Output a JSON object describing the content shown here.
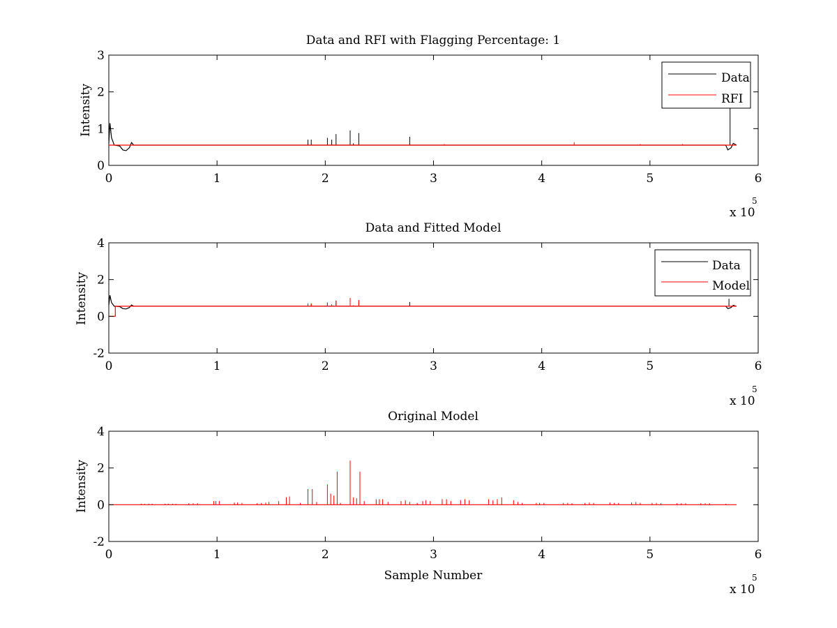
{
  "chart_data": [
    {
      "type": "line",
      "title": "Data and RFI with Flagging Percentage: 1",
      "xlabel": "",
      "ylabel": "Intensity",
      "xlim": [
        0,
        600000
      ],
      "ylim": [
        0,
        3
      ],
      "xticks": [
        "0",
        "1",
        "2",
        "3",
        "4",
        "5",
        "6"
      ],
      "yticks": [
        "0",
        "1",
        "2",
        "3"
      ],
      "x_exponent": {
        "base": "x 10",
        "power": "5"
      },
      "legend": {
        "placement": "top-right",
        "entries": [
          "Data",
          "RFI"
        ]
      },
      "series": [
        {
          "name": "Data",
          "color": "#000000",
          "baseline": 0.55,
          "points": [
            [
              0,
              0.6
            ],
            [
              1000,
              1.15
            ],
            [
              2500,
              0.75
            ],
            [
              5000,
              0.55
            ],
            [
              10000,
              0.53
            ],
            [
              13000,
              0.42
            ],
            [
              16000,
              0.4
            ],
            [
              19000,
              0.48
            ],
            [
              21000,
              0.62
            ],
            [
              23000,
              0.55
            ],
            [
              570000,
              0.55
            ],
            [
              572000,
              0.42
            ],
            [
              575000,
              0.48
            ],
            [
              577000,
              0.6
            ],
            [
              580000,
              0.55
            ]
          ],
          "spikes": [
            [
              184000,
              0.7
            ],
            [
              187000,
              0.7
            ],
            [
              202000,
              0.75
            ],
            [
              206000,
              0.7
            ],
            [
              210000,
              0.85
            ],
            [
              223000,
              0.95
            ],
            [
              226000,
              0.6
            ],
            [
              231000,
              0.88
            ],
            [
              278000,
              0.78
            ],
            [
              574000,
              1.55
            ]
          ]
        },
        {
          "name": "RFI",
          "color": "#ff0000",
          "baseline": 0.55,
          "points": [
            [
              0,
              0.55
            ],
            [
              580000,
              0.55
            ]
          ],
          "spikes": [
            [
              310000,
              0.58
            ],
            [
              430000,
              0.63
            ],
            [
              491000,
              0.58
            ],
            [
              530000,
              0.58
            ]
          ]
        }
      ]
    },
    {
      "type": "line",
      "title": "Data and Fitted Model",
      "xlabel": "",
      "ylabel": "Intensity",
      "xlim": [
        0,
        600000
      ],
      "ylim": [
        -2,
        4
      ],
      "xticks": [
        "0",
        "1",
        "2",
        "3",
        "4",
        "5",
        "6"
      ],
      "yticks": [
        "-2",
        "0",
        "2",
        "4"
      ],
      "x_exponent": {
        "base": "x 10",
        "power": "5"
      },
      "legend": {
        "placement": "top-right",
        "entries": [
          "Data",
          "Model"
        ]
      },
      "series": [
        {
          "name": "Data",
          "color": "#000000",
          "baseline": 0.55,
          "points": [
            [
              0,
              0.6
            ],
            [
              1000,
              1.15
            ],
            [
              2500,
              0.75
            ],
            [
              5000,
              0.55
            ],
            [
              10000,
              0.53
            ],
            [
              13000,
              0.42
            ],
            [
              16000,
              0.4
            ],
            [
              19000,
              0.48
            ],
            [
              21000,
              0.62
            ],
            [
              23000,
              0.55
            ],
            [
              570000,
              0.55
            ],
            [
              572000,
              0.42
            ],
            [
              575000,
              0.48
            ],
            [
              577000,
              0.6
            ],
            [
              580000,
              0.55
            ]
          ],
          "spikes": [
            [
              184000,
              0.7
            ],
            [
              187000,
              0.7
            ],
            [
              202000,
              0.75
            ],
            [
              210000,
              0.85
            ],
            [
              223000,
              0.95
            ],
            [
              231000,
              0.88
            ],
            [
              278000,
              0.78
            ],
            [
              573000,
              0.95
            ]
          ]
        },
        {
          "name": "Model",
          "color": "#ff0000",
          "baseline": 0.55,
          "points": [
            [
              0,
              0
            ],
            [
              6000,
              0
            ],
            [
              6000,
              0.55
            ],
            [
              580000,
              0.55
            ]
          ],
          "spikes": [
            [
              184000,
              0.7
            ],
            [
              187000,
              0.7
            ],
            [
              202000,
              0.75
            ],
            [
              206000,
              0.65
            ],
            [
              210000,
              0.85
            ],
            [
              223000,
              1.0
            ],
            [
              226000,
              0.6
            ],
            [
              231000,
              0.88
            ]
          ]
        }
      ]
    },
    {
      "type": "line",
      "title": "Original Model",
      "xlabel": "Sample Number",
      "ylabel": "Intensity",
      "xlim": [
        0,
        600000
      ],
      "ylim": [
        -2,
        4
      ],
      "xticks": [
        "0",
        "1",
        "2",
        "3",
        "4",
        "5",
        "6"
      ],
      "yticks": [
        "-2",
        "0",
        "2",
        "4"
      ],
      "x_exponent": {
        "base": "x 10",
        "power": "5"
      },
      "legend": null,
      "series": [
        {
          "color": "#ff0000",
          "baseline": 0,
          "points": [
            [
              0,
              0
            ],
            [
              580000,
              0
            ]
          ],
          "spikes": [
            [
              30000,
              0.05
            ],
            [
              33000,
              0.05
            ],
            [
              37000,
              0.05
            ],
            [
              40000,
              0.05
            ],
            [
              52000,
              0.05
            ],
            [
              55000,
              0.05
            ],
            [
              59000,
              0.05
            ],
            [
              62000,
              0.05
            ],
            [
              74000,
              0.08
            ],
            [
              78000,
              0.08
            ],
            [
              82000,
              0.08
            ],
            [
              97000,
              0.2
            ],
            [
              99000,
              0.2
            ],
            [
              102000,
              0.2
            ],
            [
              116000,
              0.12
            ],
            [
              119000,
              0.12
            ],
            [
              123000,
              0.1
            ],
            [
              137000,
              0.08
            ],
            [
              141000,
              0.1
            ],
            [
              145000,
              0.12
            ],
            [
              148000,
              0.15
            ],
            [
              157000,
              0.2
            ],
            [
              164000,
              0.4
            ],
            [
              167000,
              0.45
            ],
            [
              177000,
              0.1
            ],
            [
              184000,
              0.85
            ],
            [
              188000,
              0.85
            ],
            [
              192000,
              0.15
            ],
            [
              202000,
              1.1
            ],
            [
              205000,
              0.6
            ],
            [
              208000,
              0.5
            ],
            [
              211000,
              1.8
            ],
            [
              214000,
              0.1
            ],
            [
              223000,
              2.4
            ],
            [
              226000,
              0.4
            ],
            [
              229000,
              0.35
            ],
            [
              232000,
              1.8
            ],
            [
              236000,
              0.2
            ],
            [
              247000,
              0.3
            ],
            [
              250000,
              0.3
            ],
            [
              253000,
              0.3
            ],
            [
              258000,
              0.15
            ],
            [
              270000,
              0.2
            ],
            [
              274000,
              0.25
            ],
            [
              278000,
              0.15
            ],
            [
              285000,
              0.1
            ],
            [
              290000,
              0.2
            ],
            [
              293000,
              0.25
            ],
            [
              297000,
              0.2
            ],
            [
              308000,
              0.3
            ],
            [
              312000,
              0.3
            ],
            [
              316000,
              0.2
            ],
            [
              325000,
              0.25
            ],
            [
              329000,
              0.3
            ],
            [
              333000,
              0.25
            ],
            [
              351000,
              0.3
            ],
            [
              355000,
              0.25
            ],
            [
              359000,
              0.3
            ],
            [
              363000,
              0.4
            ],
            [
              374000,
              0.25
            ],
            [
              378000,
              0.15
            ],
            [
              382000,
              0.1
            ],
            [
              395000,
              0.1
            ],
            [
              398000,
              0.1
            ],
            [
              402000,
              0.1
            ],
            [
              420000,
              0.1
            ],
            [
              424000,
              0.1
            ],
            [
              428000,
              0.08
            ],
            [
              440000,
              0.1
            ],
            [
              444000,
              0.12
            ],
            [
              448000,
              0.1
            ],
            [
              463000,
              0.12
            ],
            [
              467000,
              0.1
            ],
            [
              471000,
              0.1
            ],
            [
              483000,
              0.12
            ],
            [
              487000,
              0.15
            ],
            [
              491000,
              0.1
            ],
            [
              502000,
              0.1
            ],
            [
              506000,
              0.1
            ],
            [
              510000,
              0.08
            ],
            [
              525000,
              0.08
            ],
            [
              529000,
              0.08
            ],
            [
              533000,
              0.08
            ],
            [
              547000,
              0.08
            ],
            [
              551000,
              0.08
            ],
            [
              555000,
              0.08
            ],
            [
              570000,
              0.05
            ]
          ]
        }
      ]
    }
  ]
}
